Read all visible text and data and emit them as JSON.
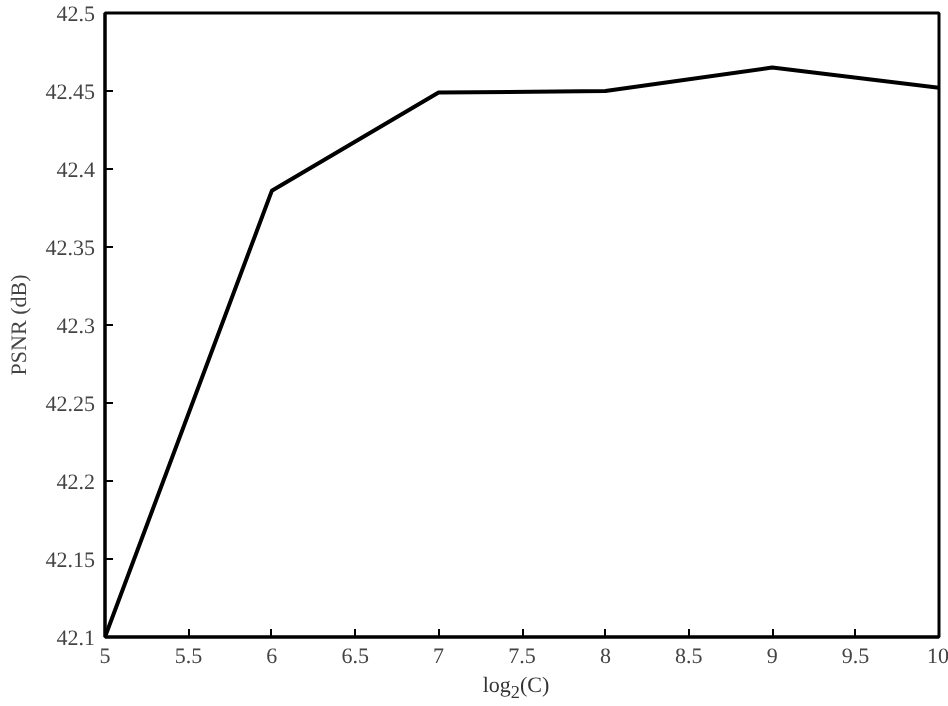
{
  "chart_data": {
    "type": "line",
    "xlabel": "log$_{2}$(C)",
    "ylabel": "PSNR (dB)",
    "x": [
      5,
      6,
      7,
      8,
      9,
      10
    ],
    "series": [
      {
        "color": "#000000",
        "values": [
          42.1,
          42.386,
          42.449,
          42.45,
          42.465,
          42.452
        ]
      }
    ],
    "xlim": [
      5,
      10
    ],
    "ylim": [
      42.1,
      42.5
    ],
    "xticks": [
      5,
      5.5,
      6,
      6.5,
      7,
      7.5,
      8,
      8.5,
      9,
      9.5,
      10
    ],
    "yticks": [
      42.1,
      42.15,
      42.2,
      42.25,
      42.3,
      42.35,
      42.4,
      42.45,
      42.5
    ],
    "grid": false,
    "marker": "none",
    "line_style": "solid"
  }
}
